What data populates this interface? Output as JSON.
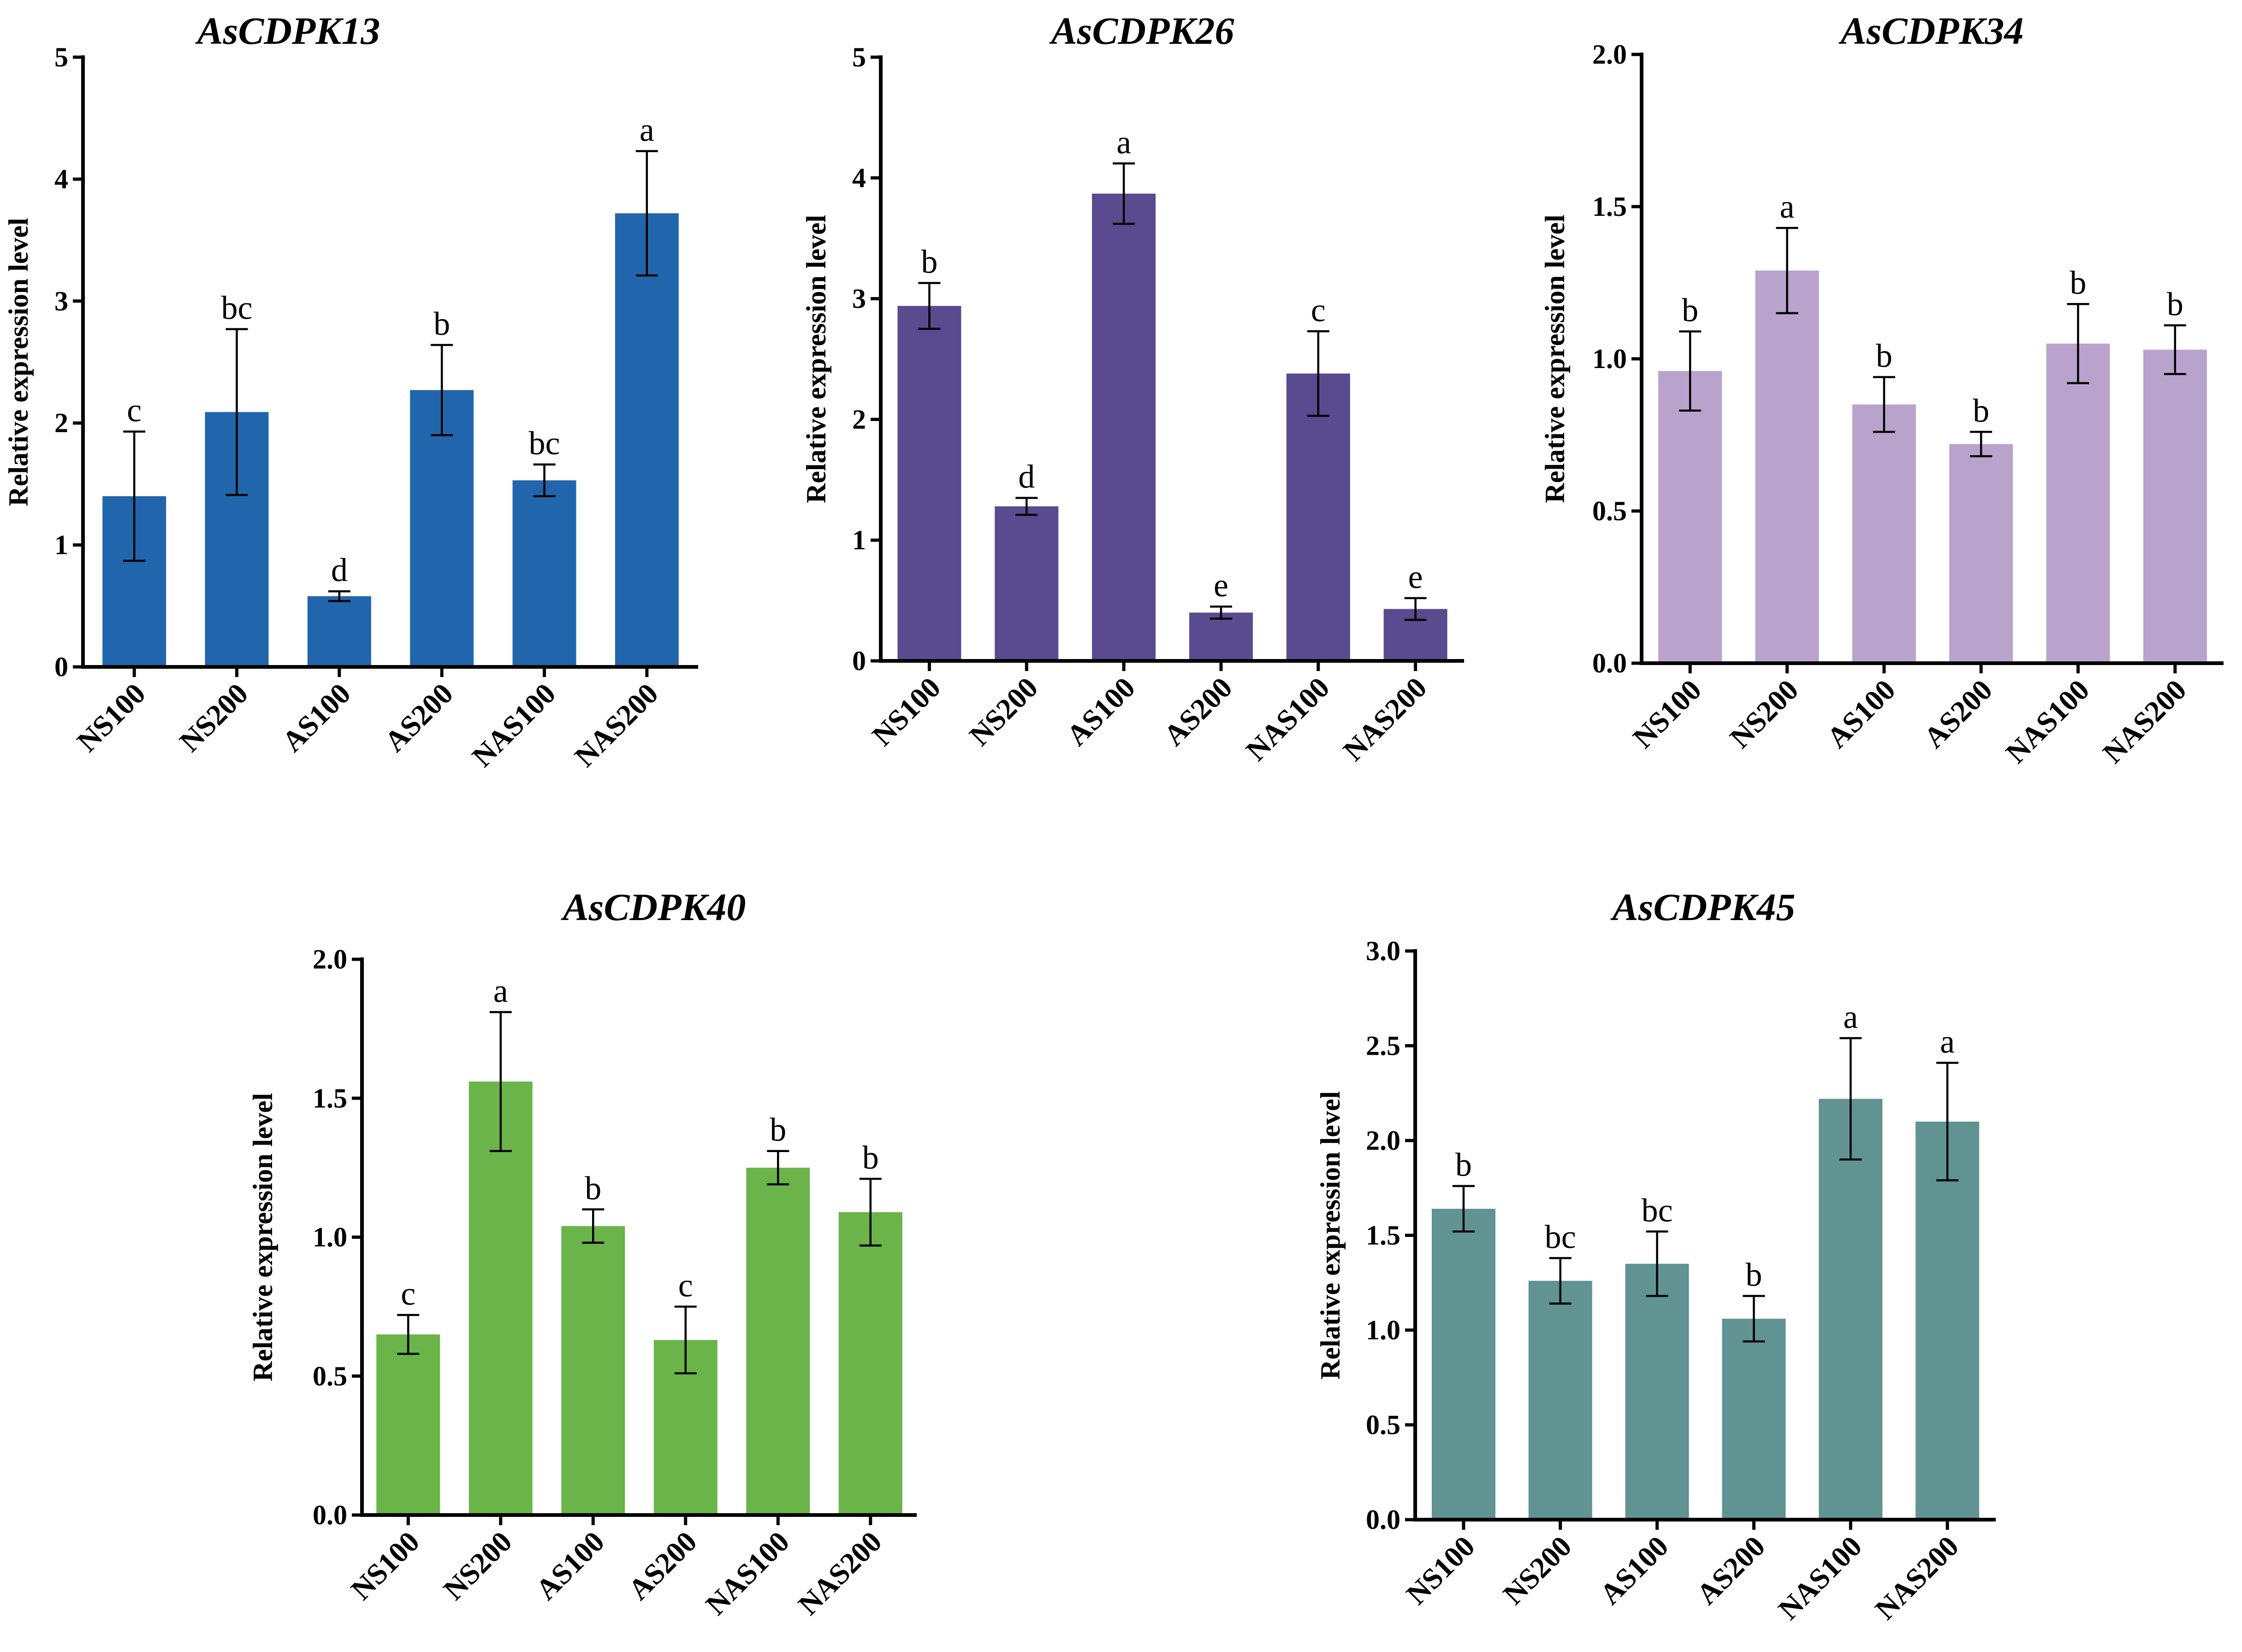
{
  "chart_data": [
    {
      "type": "bar",
      "title": "AsCDPK13",
      "ylabel": "Relative expression level",
      "xlabel": "",
      "ylim": [
        0,
        5
      ],
      "yticks": [
        "0",
        "1",
        "2",
        "3",
        "4",
        "5"
      ],
      "color": "#2166ac",
      "categories": [
        "NS100",
        "NS200",
        "AS100",
        "AS200",
        "NAS100",
        "NAS200"
      ],
      "values": [
        1.4,
        2.09,
        0.58,
        2.27,
        1.53,
        3.72
      ],
      "errors": [
        0.53,
        0.68,
        0.04,
        0.37,
        0.13,
        0.51
      ],
      "labels": [
        "c",
        "bc",
        "d",
        "b",
        "bc",
        "a"
      ]
    },
    {
      "type": "bar",
      "title": "AsCDPK26",
      "ylabel": "Relative expression level",
      "xlabel": "",
      "ylim": [
        0,
        5
      ],
      "yticks": [
        "0",
        "1",
        "2",
        "3",
        "4",
        "5"
      ],
      "color": "#5a4a8f",
      "categories": [
        "NS100",
        "NS200",
        "AS100",
        "AS200",
        "NAS100",
        "NAS200"
      ],
      "values": [
        2.94,
        1.28,
        3.87,
        0.4,
        2.38,
        0.43
      ],
      "errors": [
        0.19,
        0.07,
        0.25,
        0.05,
        0.35,
        0.09
      ],
      "labels": [
        "b",
        "d",
        "a",
        "e",
        "c",
        "e"
      ]
    },
    {
      "type": "bar",
      "title": "AsCDPK34",
      "ylabel": "Relative expression level",
      "xlabel": "",
      "ylim": [
        0,
        2
      ],
      "yticks": [
        "0.0",
        "0.5",
        "1.0",
        "1.5",
        "2.0"
      ],
      "color": "#b9a3cd",
      "categories": [
        "NS100",
        "NS200",
        "AS100",
        "AS200",
        "NAS100",
        "NAS200"
      ],
      "values": [
        0.96,
        1.29,
        0.85,
        0.72,
        1.05,
        1.03
      ],
      "errors": [
        0.13,
        0.14,
        0.09,
        0.04,
        0.13,
        0.08
      ],
      "labels": [
        "b",
        "a",
        "b",
        "b",
        "b",
        "b"
      ]
    },
    {
      "type": "bar",
      "title": "AsCDPK40",
      "ylabel": "Relative expression level",
      "xlabel": "",
      "ylim": [
        0,
        2
      ],
      "yticks": [
        "0.0",
        "0.5",
        "1.0",
        "1.5",
        "2.0"
      ],
      "color": "#6ab44a",
      "categories": [
        "NS100",
        "NS200",
        "AS100",
        "AS200",
        "NAS100",
        "NAS200"
      ],
      "values": [
        0.65,
        1.56,
        1.04,
        0.63,
        1.25,
        1.09
      ],
      "errors": [
        0.07,
        0.25,
        0.06,
        0.12,
        0.06,
        0.12
      ],
      "labels": [
        "c",
        "a",
        "b",
        "c",
        "b",
        "b"
      ]
    },
    {
      "type": "bar",
      "title": "AsCDPK45",
      "ylabel": "Relative expression level",
      "xlabel": "",
      "ylim": [
        0,
        3
      ],
      "yticks": [
        "0.0",
        "0.5",
        "1.0",
        "1.5",
        "2.0",
        "2.5",
        "3.0"
      ],
      "color": "#619393",
      "categories": [
        "NS100",
        "NS200",
        "AS100",
        "AS200",
        "NAS100",
        "NAS200"
      ],
      "values": [
        1.64,
        1.26,
        1.35,
        1.06,
        2.22,
        2.1
      ],
      "errors": [
        0.12,
        0.12,
        0.17,
        0.12,
        0.32,
        0.31
      ],
      "labels": [
        "b",
        "bc",
        "bc",
        "b",
        "a",
        "a"
      ]
    }
  ]
}
